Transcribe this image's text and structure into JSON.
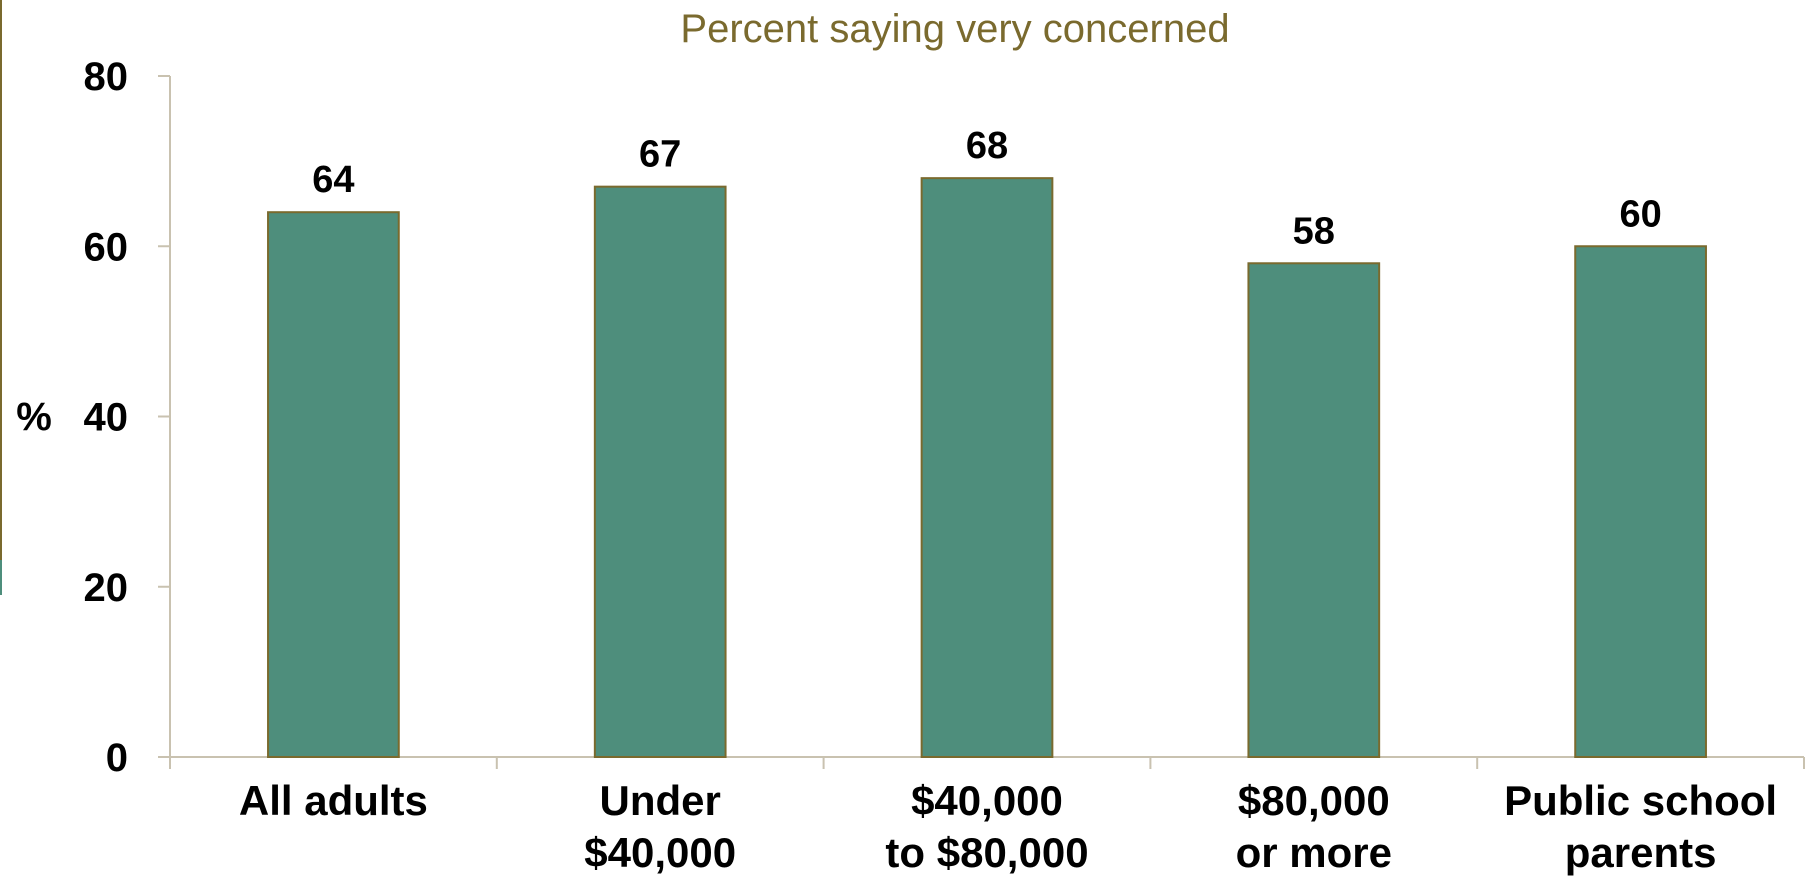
{
  "chart_data": {
    "type": "bar",
    "title": "Percent saying very concerned",
    "ylabel": "%",
    "categories": [
      [
        "All adults"
      ],
      [
        "Under",
        "$40,000"
      ],
      [
        "$40,000",
        "to $80,000"
      ],
      [
        "$80,000",
        "or more"
      ],
      [
        "Public school",
        "parents"
      ]
    ],
    "values": [
      64,
      67,
      68,
      58,
      60
    ],
    "ylim": [
      0,
      80
    ],
    "yticks": [
      0,
      20,
      40,
      60,
      80
    ],
    "grid": false,
    "bar_color": "#4e8e7c",
    "bar_border_color": "#7a6a2e",
    "title_color": "#7a6a2e"
  }
}
